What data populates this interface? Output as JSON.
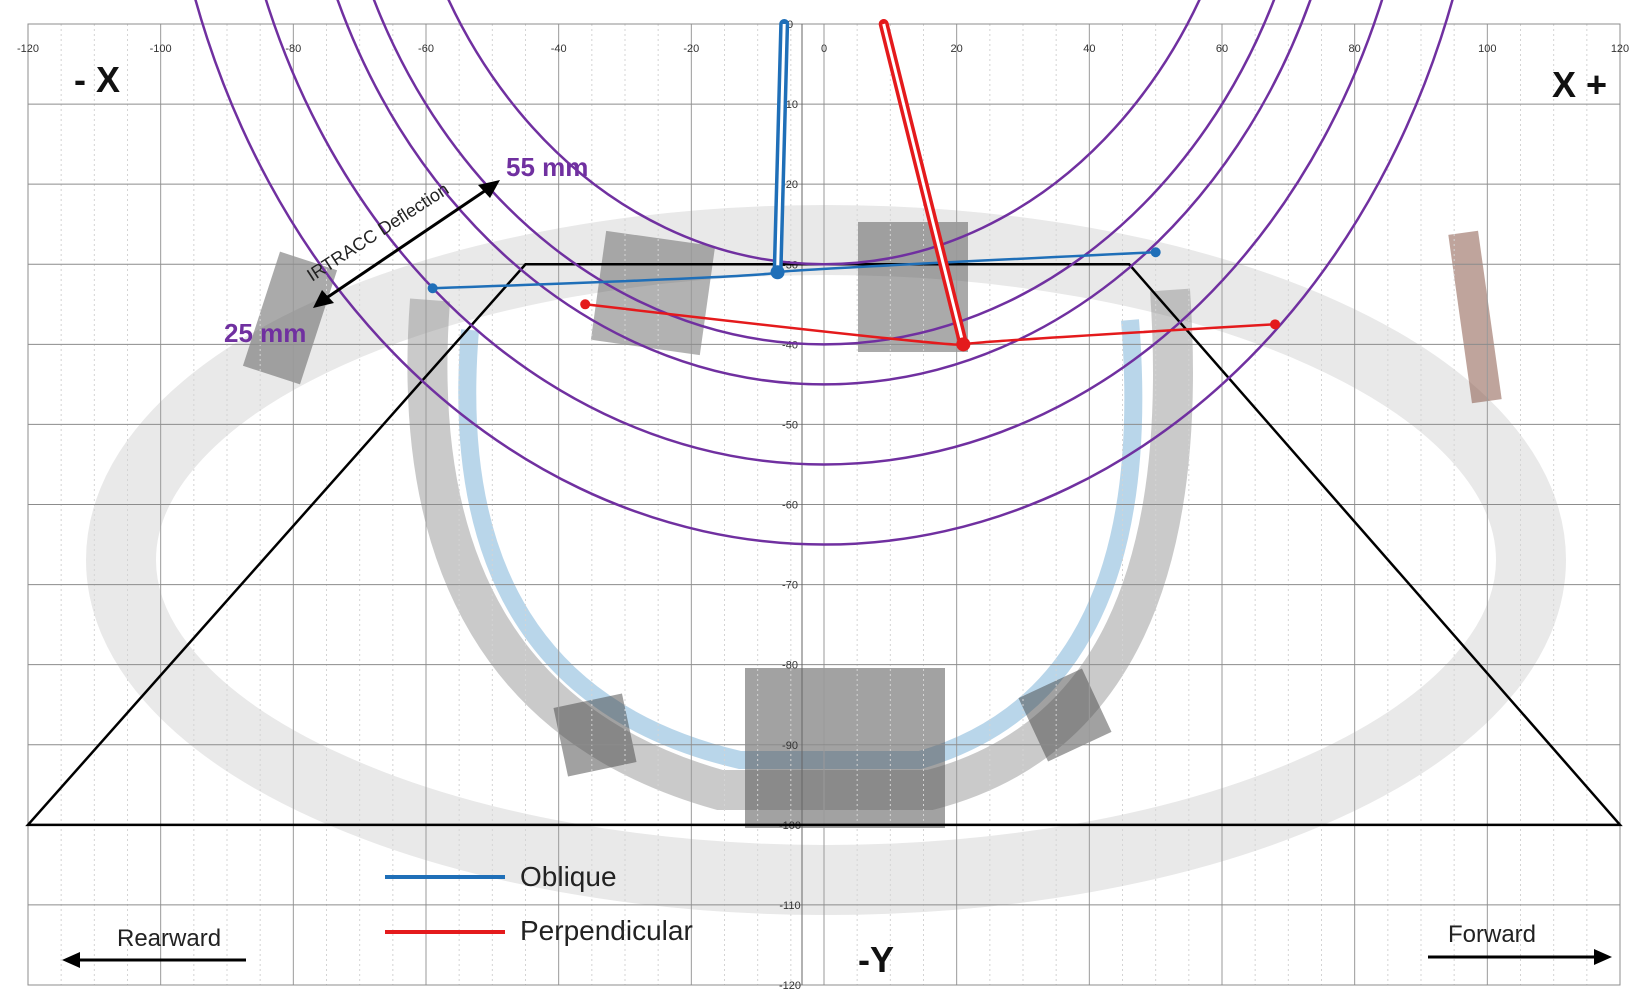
{
  "chart_data": {
    "type": "scatter",
    "xlim": [
      -120,
      120
    ],
    "ylim": [
      -120,
      0
    ],
    "x_ticks": [
      -120,
      -100,
      -80,
      -60,
      -40,
      -20,
      0,
      20,
      40,
      60,
      80,
      100,
      120
    ],
    "y_ticks": [
      0,
      -10,
      -20,
      -30,
      -40,
      -50,
      -60,
      -70,
      -80,
      -90,
      -100,
      -110,
      -120
    ],
    "grid": true,
    "grid_minor_x_step": 5,
    "labels": {
      "neg_x": "- X",
      "pos_x": "X +",
      "neg_y": "-Y",
      "rearward": "Rearward",
      "forward": "Forward",
      "irtracc": "IRTRACC Deflection",
      "outer_ring": "55 mm",
      "inner_ring": "25 mm"
    },
    "rings": {
      "center": [
        0,
        35
      ],
      "radii": [
        65,
        75,
        80,
        90,
        100
      ],
      "color": "#7030A0"
    },
    "trapezoid": [
      [
        -120,
        -100
      ],
      [
        -45,
        -30
      ],
      [
        46,
        -30
      ],
      [
        120,
        -100
      ]
    ],
    "series": [
      {
        "name": "Oblique",
        "color": "#1F6FB8",
        "points": [
          [
            -59,
            -33
          ],
          [
            -7,
            -31
          ],
          [
            50,
            -28.5
          ]
        ],
        "rod": [
          [
            -7,
            -31
          ],
          [
            -6,
            0
          ]
        ]
      },
      {
        "name": "Perpendicular",
        "color": "#E41A1C",
        "points": [
          [
            -36,
            -35
          ],
          [
            21,
            -40
          ],
          [
            68,
            -37.5
          ]
        ],
        "rod": [
          [
            21,
            -40
          ],
          [
            9,
            0
          ]
        ]
      }
    ]
  }
}
